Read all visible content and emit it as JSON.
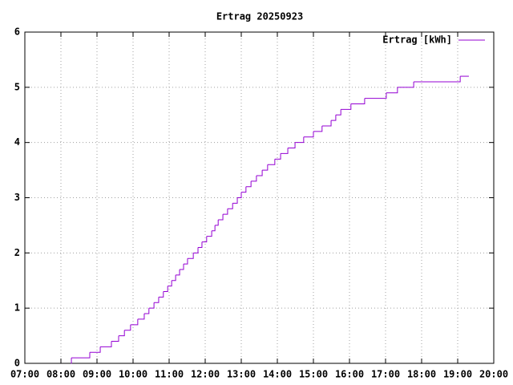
{
  "chart_data": {
    "type": "step",
    "title": "Ertrag 20250923",
    "x": [
      8.28,
      8.29,
      8.8,
      9.09,
      9.4,
      9.6,
      9.76,
      9.93,
      10.13,
      10.31,
      10.44,
      10.58,
      10.71,
      10.84,
      10.96,
      11.07,
      11.18,
      11.29,
      11.4,
      11.51,
      11.67,
      11.8,
      11.91,
      12.04,
      12.18,
      12.27,
      12.36,
      12.49,
      12.62,
      12.76,
      12.89,
      13.0,
      13.13,
      13.27,
      13.42,
      13.58,
      13.73,
      13.93,
      14.09,
      14.29,
      14.49,
      14.73,
      15.0,
      15.24,
      15.49,
      15.62,
      15.76,
      16.04,
      16.42,
      17.02,
      17.33,
      17.78,
      19.07,
      19.31
    ],
    "series": [
      {
        "name": "Ertrag [kWh]",
        "color": "#9400d3",
        "values": [
          0.0,
          0.1,
          0.2,
          0.3,
          0.4,
          0.5,
          0.6,
          0.7,
          0.8,
          0.9,
          1.0,
          1.1,
          1.2,
          1.3,
          1.4,
          1.5,
          1.6,
          1.7,
          1.8,
          1.9,
          2.0,
          2.1,
          2.2,
          2.3,
          2.4,
          2.5,
          2.6,
          2.7,
          2.8,
          2.9,
          3.0,
          3.1,
          3.2,
          3.3,
          3.4,
          3.5,
          3.6,
          3.7,
          3.8,
          3.9,
          4.0,
          4.1,
          4.2,
          4.3,
          4.4,
          4.5,
          4.6,
          4.7,
          4.8,
          4.9,
          5.0,
          5.1,
          5.2,
          5.2
        ]
      }
    ],
    "xlim": [
      7,
      20
    ],
    "xticks": [
      {
        "value": 7,
        "label": "07:00"
      },
      {
        "value": 8,
        "label": "08:00"
      },
      {
        "value": 9,
        "label": "09:00"
      },
      {
        "value": 10,
        "label": "10:00"
      },
      {
        "value": 11,
        "label": "11:00"
      },
      {
        "value": 12,
        "label": "12:00"
      },
      {
        "value": 13,
        "label": "13:00"
      },
      {
        "value": 14,
        "label": "14:00"
      },
      {
        "value": 15,
        "label": "15:00"
      },
      {
        "value": 16,
        "label": "16:00"
      },
      {
        "value": 17,
        "label": "17:00"
      },
      {
        "value": 18,
        "label": "18:00"
      },
      {
        "value": 19,
        "label": "19:00"
      },
      {
        "value": 20,
        "label": "20:00"
      }
    ],
    "ylim": [
      0,
      6
    ],
    "yticks": [
      0,
      1,
      2,
      3,
      4,
      5,
      6
    ],
    "grid": true,
    "legend": "top-right"
  }
}
